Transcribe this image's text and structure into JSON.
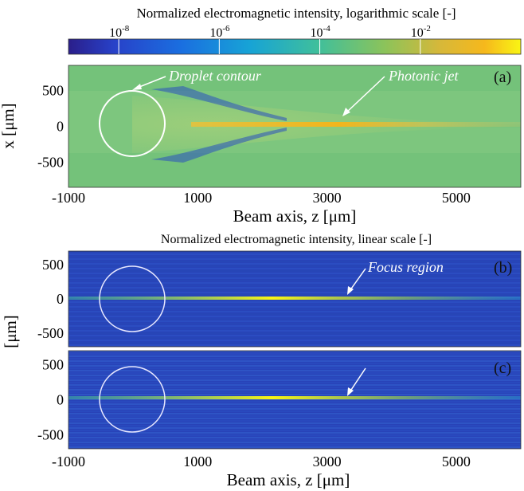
{
  "figure": {
    "colorbar_title": "Normalized electromagnetic intensity, logarithmic  scale  [-]",
    "colorbar_ticks": [
      {
        "base": "10",
        "exp": "-8"
      },
      {
        "base": "10",
        "exp": "-6"
      },
      {
        "base": "10",
        "exp": "-4"
      },
      {
        "base": "10",
        "exp": "-2"
      }
    ],
    "linear_title": "Normalized electromagnetic intensity, linear scale  [-]",
    "panel_labels": [
      "(a)",
      "(b)",
      "(c)"
    ],
    "annotations": {
      "droplet": "Droplet contour",
      "jet": "Photonic jet",
      "focus": "Focus region"
    },
    "xlabel": "Beam axis, z [μm]",
    "ylabel_a": "x [μm]",
    "ylabel_bc": "[μm]",
    "xticks": [
      "-1000",
      "1000",
      "3000",
      "5000"
    ],
    "yticks_a": [
      "500",
      "0",
      "-500"
    ],
    "yticks_b": [
      "500",
      "0",
      "-500"
    ],
    "yticks_c": [
      "500",
      "0",
      "-500"
    ]
  },
  "chart_data": [
    {
      "type": "heatmap",
      "panel": "(a)",
      "scale": "log",
      "colorbar_range": [
        1e-09,
        1
      ],
      "xlabel": "Beam axis, z [μm]",
      "ylabel": "x [μm]",
      "xlim": [
        -1000,
        6000
      ],
      "ylim": [
        -850,
        850
      ],
      "xticks": [
        -1000,
        1000,
        3000,
        5000
      ],
      "yticks": [
        500,
        0,
        -500
      ],
      "droplet": {
        "center_z": 0,
        "center_x": 0,
        "radius": 500
      },
      "jet_peak_z": 3000
    },
    {
      "type": "heatmap",
      "panel": "(b)",
      "scale": "linear",
      "xlim": [
        -1000,
        6000
      ],
      "ylim": [
        -700,
        700
      ],
      "yticks": [
        500,
        0,
        -500
      ],
      "droplet": {
        "center_z": 0,
        "center_x": 0,
        "radius": 500
      },
      "focus_z": 3000
    },
    {
      "type": "heatmap",
      "panel": "(c)",
      "scale": "linear",
      "xlabel": "Beam axis, z [μm]",
      "xlim": [
        -1000,
        6000
      ],
      "ylim": [
        -700,
        700
      ],
      "xticks": [
        -1000,
        1000,
        3000,
        5000
      ],
      "yticks": [
        500,
        0,
        -500
      ],
      "droplet": {
        "center_z": 0,
        "center_x": 0,
        "radius": 500
      },
      "focus_z": 3000
    }
  ]
}
